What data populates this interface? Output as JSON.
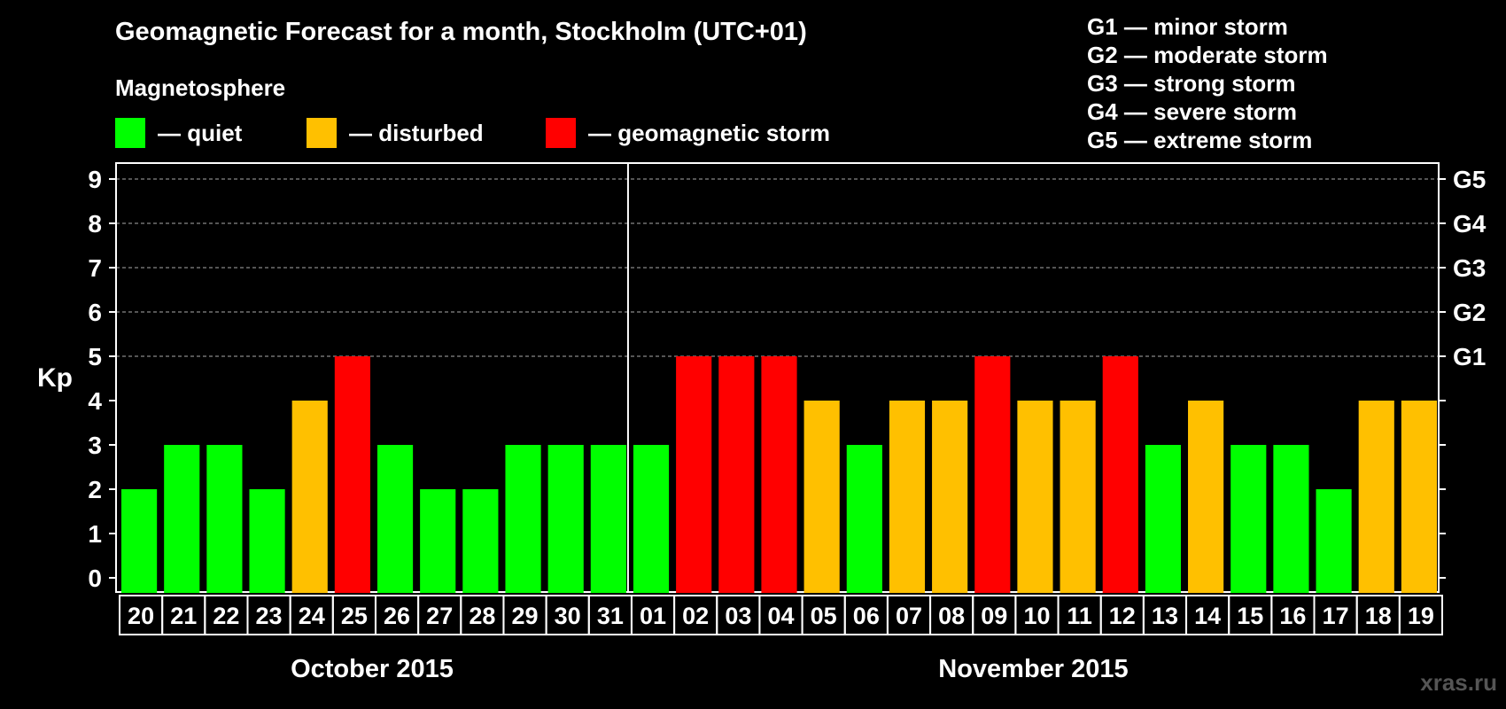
{
  "chart_data": {
    "type": "bar",
    "title": "Geomagnetic Forecast for a month, Stockholm (UTC+01)",
    "ylabel": "Kp",
    "ylim": [
      0,
      9
    ],
    "y_ticks": [
      "0",
      "1",
      "2",
      "3",
      "4",
      "5",
      "6",
      "7",
      "8",
      "9"
    ],
    "right_ticks": [
      {
        "kp": 5,
        "label": "G1"
      },
      {
        "kp": 6,
        "label": "G2"
      },
      {
        "kp": 7,
        "label": "G3"
      },
      {
        "kp": 8,
        "label": "G4"
      },
      {
        "kp": 9,
        "label": "G5"
      }
    ],
    "categories": [
      "20",
      "21",
      "22",
      "23",
      "24",
      "25",
      "26",
      "27",
      "28",
      "29",
      "30",
      "31",
      "01",
      "02",
      "03",
      "04",
      "05",
      "06",
      "07",
      "08",
      "09",
      "10",
      "11",
      "12",
      "13",
      "14",
      "15",
      "16",
      "17",
      "18",
      "19"
    ],
    "values": [
      2,
      3,
      3,
      2,
      4,
      5,
      3,
      2,
      2,
      3,
      3,
      3,
      3,
      5,
      5,
      5,
      4,
      3,
      4,
      4,
      5,
      4,
      4,
      5,
      3,
      4,
      3,
      3,
      2,
      4,
      4
    ],
    "months": [
      {
        "label": "October 2015",
        "days": 12
      },
      {
        "label": "November 2015",
        "days": 19
      }
    ],
    "grid": true,
    "colors": {
      "quiet": "#00ff00",
      "disturbed": "#ffc000",
      "storm": "#ff0000"
    }
  },
  "legend": {
    "heading": "Magnetosphere",
    "quiet": "— quiet",
    "disturbed": "— disturbed",
    "storm": "— geomagnetic storm"
  },
  "g_levels": [
    "G1 — minor storm",
    "G2 — moderate storm",
    "G3 — strong storm",
    "G4 — severe storm",
    "G5 — extreme storm"
  ],
  "watermark": "xras.ru"
}
